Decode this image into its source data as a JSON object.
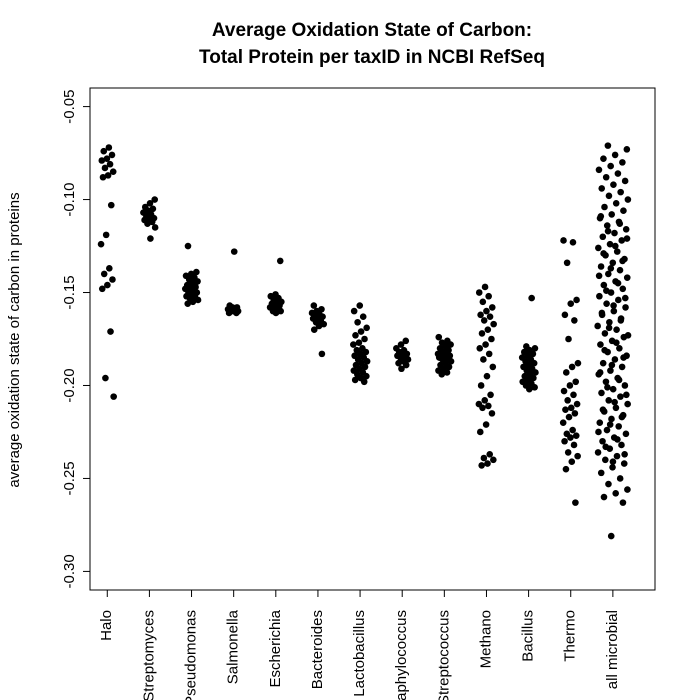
{
  "chart_data": {
    "type": "strip",
    "title": [
      "Average Oxidation State of Carbon:",
      "Total Protein per taxID in NCBI RefSeq"
    ],
    "y_label": "average oxidation state of carbon in proteins",
    "categories": [
      "Halo",
      "Streptomyces",
      "Pseudomonas",
      "Salmonella",
      "Escherichia",
      "Bacteroides",
      "Lactobacillus",
      "Staphylococcus",
      "Streptococcus",
      "Methano",
      "Bacillus",
      "Thermo",
      "all microbial"
    ],
    "color": "#000000",
    "ylim": [
      -0.31,
      -0.04
    ],
    "yticks": [
      -0.05,
      {
        "value": -0.1,
        "label": "-0.10"
      },
      -0.15,
      {
        "value": -0.2,
        "label": "-0.20"
      },
      -0.25,
      {
        "value": -0.3,
        "label": "-0.30"
      }
    ],
    "values": [
      [
        -0.072,
        -0.074,
        -0.076,
        -0.078,
        -0.079,
        -0.081,
        -0.083,
        -0.085,
        -0.087,
        -0.088,
        -0.103,
        -0.119,
        -0.124,
        -0.137,
        -0.14,
        -0.143,
        -0.146,
        -0.148,
        -0.171,
        -0.196,
        -0.206
      ],
      [
        -0.1,
        -0.102,
        -0.104,
        -0.105,
        -0.106,
        -0.107,
        -0.108,
        -0.109,
        -0.11,
        -0.11,
        -0.111,
        -0.112,
        -0.113,
        -0.115,
        -0.121
      ],
      [
        -0.125,
        -0.139,
        -0.14,
        -0.141,
        -0.142,
        -0.143,
        -0.144,
        -0.145,
        -0.146,
        -0.147,
        -0.147,
        -0.148,
        -0.149,
        -0.15,
        -0.15,
        -0.151,
        -0.152,
        -0.152,
        -0.153,
        -0.154,
        -0.155,
        -0.156
      ],
      [
        -0.128,
        -0.157,
        -0.158,
        -0.158,
        -0.159,
        -0.159,
        -0.16,
        -0.16,
        -0.16,
        -0.161,
        -0.161
      ],
      [
        -0.133,
        -0.151,
        -0.152,
        -0.153,
        -0.154,
        -0.155,
        -0.156,
        -0.156,
        -0.157,
        -0.158,
        -0.158,
        -0.159,
        -0.16,
        -0.16,
        -0.161
      ],
      [
        -0.157,
        -0.159,
        -0.16,
        -0.161,
        -0.162,
        -0.162,
        -0.163,
        -0.164,
        -0.164,
        -0.165,
        -0.166,
        -0.167,
        -0.168,
        -0.17,
        -0.183
      ],
      [
        -0.157,
        -0.16,
        -0.163,
        -0.166,
        -0.169,
        -0.171,
        -0.173,
        -0.175,
        -0.177,
        -0.178,
        -0.18,
        -0.181,
        -0.182,
        -0.183,
        -0.184,
        -0.185,
        -0.186,
        -0.187,
        -0.188,
        -0.189,
        -0.19,
        -0.191,
        -0.192,
        -0.193,
        -0.194,
        -0.195,
        -0.196,
        -0.197,
        -0.198
      ],
      [
        -0.176,
        -0.178,
        -0.18,
        -0.181,
        -0.182,
        -0.183,
        -0.183,
        -0.184,
        -0.184,
        -0.185,
        -0.186,
        -0.187,
        -0.188,
        -0.189,
        -0.191
      ],
      [
        -0.174,
        -0.176,
        -0.177,
        -0.178,
        -0.179,
        -0.18,
        -0.181,
        -0.182,
        -0.183,
        -0.183,
        -0.184,
        -0.184,
        -0.185,
        -0.185,
        -0.186,
        -0.186,
        -0.187,
        -0.188,
        -0.189,
        -0.19,
        -0.191,
        -0.192,
        -0.193,
        -0.194
      ],
      [
        -0.147,
        -0.15,
        -0.152,
        -0.155,
        -0.158,
        -0.16,
        -0.162,
        -0.163,
        -0.165,
        -0.167,
        -0.17,
        -0.172,
        -0.175,
        -0.178,
        -0.18,
        -0.183,
        -0.186,
        -0.19,
        -0.195,
        -0.2,
        -0.205,
        -0.208,
        -0.21,
        -0.211,
        -0.212,
        -0.215,
        -0.221,
        -0.225,
        -0.237,
        -0.239,
        -0.24,
        -0.242,
        -0.243
      ],
      [
        -0.153,
        -0.179,
        -0.18,
        -0.181,
        -0.182,
        -0.183,
        -0.184,
        -0.185,
        -0.186,
        -0.187,
        -0.188,
        -0.189,
        -0.19,
        -0.191,
        -0.192,
        -0.193,
        -0.194,
        -0.195,
        -0.196,
        -0.197,
        -0.198,
        -0.199,
        -0.2,
        -0.201,
        -0.202
      ],
      [
        -0.122,
        -0.123,
        -0.134,
        -0.154,
        -0.156,
        -0.162,
        -0.165,
        -0.175,
        -0.188,
        -0.19,
        -0.193,
        -0.198,
        -0.2,
        -0.203,
        -0.205,
        -0.208,
        -0.21,
        -0.212,
        -0.213,
        -0.215,
        -0.217,
        -0.22,
        -0.224,
        -0.226,
        -0.227,
        -0.228,
        -0.23,
        -0.232,
        -0.236,
        -0.238,
        -0.241,
        -0.245,
        -0.263
      ],
      [
        -0.071,
        -0.073,
        -0.076,
        -0.078,
        -0.08,
        -0.082,
        -0.084,
        -0.086,
        -0.088,
        -0.09,
        -0.092,
        -0.094,
        -0.096,
        -0.098,
        -0.1,
        -0.102,
        -0.104,
        -0.106,
        -0.108,
        -0.11,
        -0.112,
        -0.114,
        -0.116,
        -0.118,
        -0.12,
        -0.122,
        -0.124,
        -0.126,
        -0.128,
        -0.13,
        -0.132,
        -0.134,
        -0.136,
        -0.138,
        -0.14,
        -0.142,
        -0.144,
        -0.146,
        -0.148,
        -0.15,
        -0.152,
        -0.154,
        -0.156,
        -0.158,
        -0.16,
        -0.162,
        -0.164,
        -0.166,
        -0.168,
        -0.17,
        -0.172,
        -0.174,
        -0.176,
        -0.178,
        -0.18,
        -0.182,
        -0.184,
        -0.186,
        -0.188,
        -0.19,
        -0.192,
        -0.194,
        -0.196,
        -0.198,
        -0.2,
        -0.202,
        -0.204,
        -0.206,
        -0.208,
        -0.21,
        -0.212,
        -0.214,
        -0.216,
        -0.218,
        -0.22,
        -0.222,
        -0.224,
        -0.226,
        -0.228,
        -0.23,
        -0.232,
        -0.234,
        -0.236,
        -0.238,
        -0.24,
        -0.242,
        -0.244,
        -0.109,
        -0.113,
        -0.117,
        -0.121,
        -0.125,
        -0.129,
        -0.133,
        -0.137,
        -0.141,
        -0.145,
        -0.149,
        -0.153,
        -0.157,
        -0.161,
        -0.165,
        -0.169,
        -0.173,
        -0.177,
        -0.181,
        -0.185,
        -0.189,
        -0.193,
        -0.197,
        -0.201,
        -0.205,
        -0.209,
        -0.213,
        -0.217,
        -0.221,
        -0.225,
        -0.229,
        -0.233,
        -0.237,
        -0.241,
        -0.247,
        -0.25,
        -0.253,
        -0.256,
        -0.258,
        -0.26,
        -0.263,
        -0.281
      ]
    ]
  }
}
